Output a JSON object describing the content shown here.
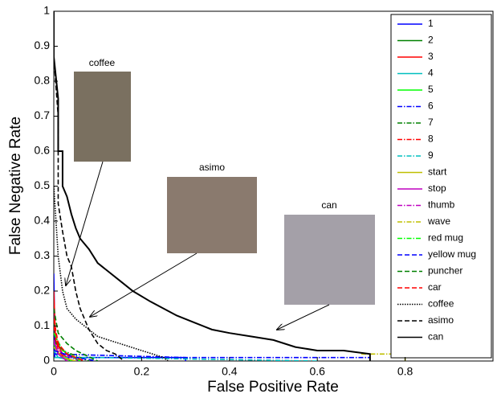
{
  "chart_data": {
    "type": "line",
    "xlabel": "False Positive Rate",
    "ylabel": "False Negative Rate",
    "xlim": [
      0,
      1
    ],
    "ylim": [
      0,
      1
    ],
    "xticks": [
      0,
      0.2,
      0.4,
      0.6,
      0.8
    ],
    "yticks": [
      0,
      0.1,
      0.2,
      0.3,
      0.4,
      0.5,
      0.6,
      0.7,
      0.8,
      0.9,
      1
    ],
    "legend": "upper right",
    "annotations": [
      "coffee",
      "asimo",
      "can"
    ],
    "series": [
      {
        "name": "1",
        "color": "#0000ff",
        "dash": "solid",
        "x": [
          0,
          0.002,
          0.002,
          0.3,
          0.3
        ],
        "values": [
          0.25,
          0.1,
          0.01,
          0.01,
          0
        ]
      },
      {
        "name": "2",
        "color": "#008000",
        "dash": "solid",
        "x": [
          0,
          0.005,
          0.03,
          0.06
        ],
        "values": [
          0.12,
          0.05,
          0.02,
          0
        ]
      },
      {
        "name": "3",
        "color": "#ff0000",
        "dash": "solid",
        "x": [
          0,
          0.004,
          0.02,
          0.04
        ],
        "values": [
          0.2,
          0.06,
          0.02,
          0
        ]
      },
      {
        "name": "4",
        "color": "#00bfbf",
        "dash": "solid",
        "x": [
          0,
          0.01,
          0.05
        ],
        "values": [
          0.03,
          0.01,
          0
        ]
      },
      {
        "name": "5",
        "color": "#00ff00",
        "dash": "solid",
        "x": [
          0,
          0.01,
          0.04
        ],
        "values": [
          0.05,
          0.02,
          0
        ]
      },
      {
        "name": "6",
        "color": "#0000ff",
        "dash": "dashdot",
        "x": [
          0,
          0.3,
          0.5,
          0.72,
          0.72
        ],
        "values": [
          0.02,
          0.01,
          0.01,
          0.01,
          0
        ]
      },
      {
        "name": "7",
        "color": "#008000",
        "dash": "dashdot",
        "x": [
          0,
          0.02,
          0.08
        ],
        "values": [
          0.08,
          0.03,
          0
        ]
      },
      {
        "name": "8",
        "color": "#ff0000",
        "dash": "dashdot",
        "x": [
          0,
          0.01,
          0.03
        ],
        "values": [
          0.1,
          0.03,
          0
        ]
      },
      {
        "name": "9",
        "color": "#00bfbf",
        "dash": "dashdot",
        "x": [
          0,
          0.1,
          0.6
        ],
        "values": [
          0.01,
          0.01,
          0
        ]
      },
      {
        "name": "start",
        "color": "#bfbf00",
        "dash": "solid",
        "x": [
          0,
          0.02,
          0.05
        ],
        "values": [
          0.04,
          0.01,
          0
        ]
      },
      {
        "name": "stop",
        "color": "#bf00bf",
        "dash": "solid",
        "x": [
          0,
          0.01,
          0.03
        ],
        "values": [
          0.06,
          0.02,
          0
        ]
      },
      {
        "name": "thumb",
        "color": "#bf00bf",
        "dash": "dashdot",
        "x": [
          0,
          0.02,
          0.06
        ],
        "values": [
          0.05,
          0.02,
          0
        ]
      },
      {
        "name": "wave",
        "color": "#bfbf00",
        "dash": "dashdot",
        "x": [
          0.7,
          0.8,
          0.8
        ],
        "values": [
          0.02,
          0.02,
          0
        ]
      },
      {
        "name": "red mug",
        "color": "#00ff00",
        "dash": "dashdot",
        "x": [
          0,
          0.02,
          0.06
        ],
        "values": [
          0.08,
          0.03,
          0
        ]
      },
      {
        "name": "yellow mug",
        "color": "#0000ff",
        "dash": "dashed",
        "x": [
          0,
          0.05,
          0.1
        ],
        "values": [
          0.03,
          0.01,
          0
        ]
      },
      {
        "name": "puncher",
        "color": "#008000",
        "dash": "dashed",
        "x": [
          0,
          0.01,
          0.03,
          0.05,
          0.1
        ],
        "values": [
          0.15,
          0.08,
          0.05,
          0.03,
          0
        ]
      },
      {
        "name": "car",
        "color": "#ff0000",
        "dash": "dashed",
        "x": [
          0,
          0.01,
          0.03,
          0.07
        ],
        "values": [
          0.12,
          0.05,
          0.02,
          0
        ]
      },
      {
        "name": "coffee",
        "color": "#000000",
        "dash": "dotted",
        "x": [
          0,
          0.005,
          0.01,
          0.02,
          0.03,
          0.05,
          0.07,
          0.1,
          0.15,
          0.2,
          0.25,
          0.26
        ],
        "values": [
          0.5,
          0.4,
          0.3,
          0.2,
          0.15,
          0.12,
          0.1,
          0.07,
          0.05,
          0.03,
          0.01,
          0
        ]
      },
      {
        "name": "asimo",
        "color": "#000000",
        "dash": "dashed",
        "x": [
          0,
          0.01,
          0.01,
          0.02,
          0.03,
          0.04,
          0.05,
          0.06,
          0.07,
          0.08,
          0.09,
          0.1,
          0.12,
          0.14,
          0.16
        ],
        "values": [
          0.87,
          0.7,
          0.45,
          0.37,
          0.3,
          0.27,
          0.2,
          0.15,
          0.12,
          0.09,
          0.07,
          0.05,
          0.03,
          0.02,
          0
        ]
      },
      {
        "name": "can",
        "color": "#000000",
        "dash": "solid",
        "x": [
          0,
          0,
          0.01,
          0.01,
          0.02,
          0.02,
          0.03,
          0.04,
          0.05,
          0.06,
          0.08,
          0.1,
          0.12,
          0.15,
          0.18,
          0.22,
          0.25,
          0.28,
          0.32,
          0.36,
          0.4,
          0.45,
          0.5,
          0.55,
          0.6,
          0.66,
          0.72,
          0.72
        ],
        "values": [
          1,
          0.87,
          0.75,
          0.6,
          0.6,
          0.5,
          0.47,
          0.42,
          0.38,
          0.35,
          0.32,
          0.28,
          0.26,
          0.23,
          0.2,
          0.17,
          0.15,
          0.13,
          0.11,
          0.09,
          0.08,
          0.07,
          0.06,
          0.04,
          0.03,
          0.03,
          0.02,
          0
        ]
      }
    ]
  }
}
